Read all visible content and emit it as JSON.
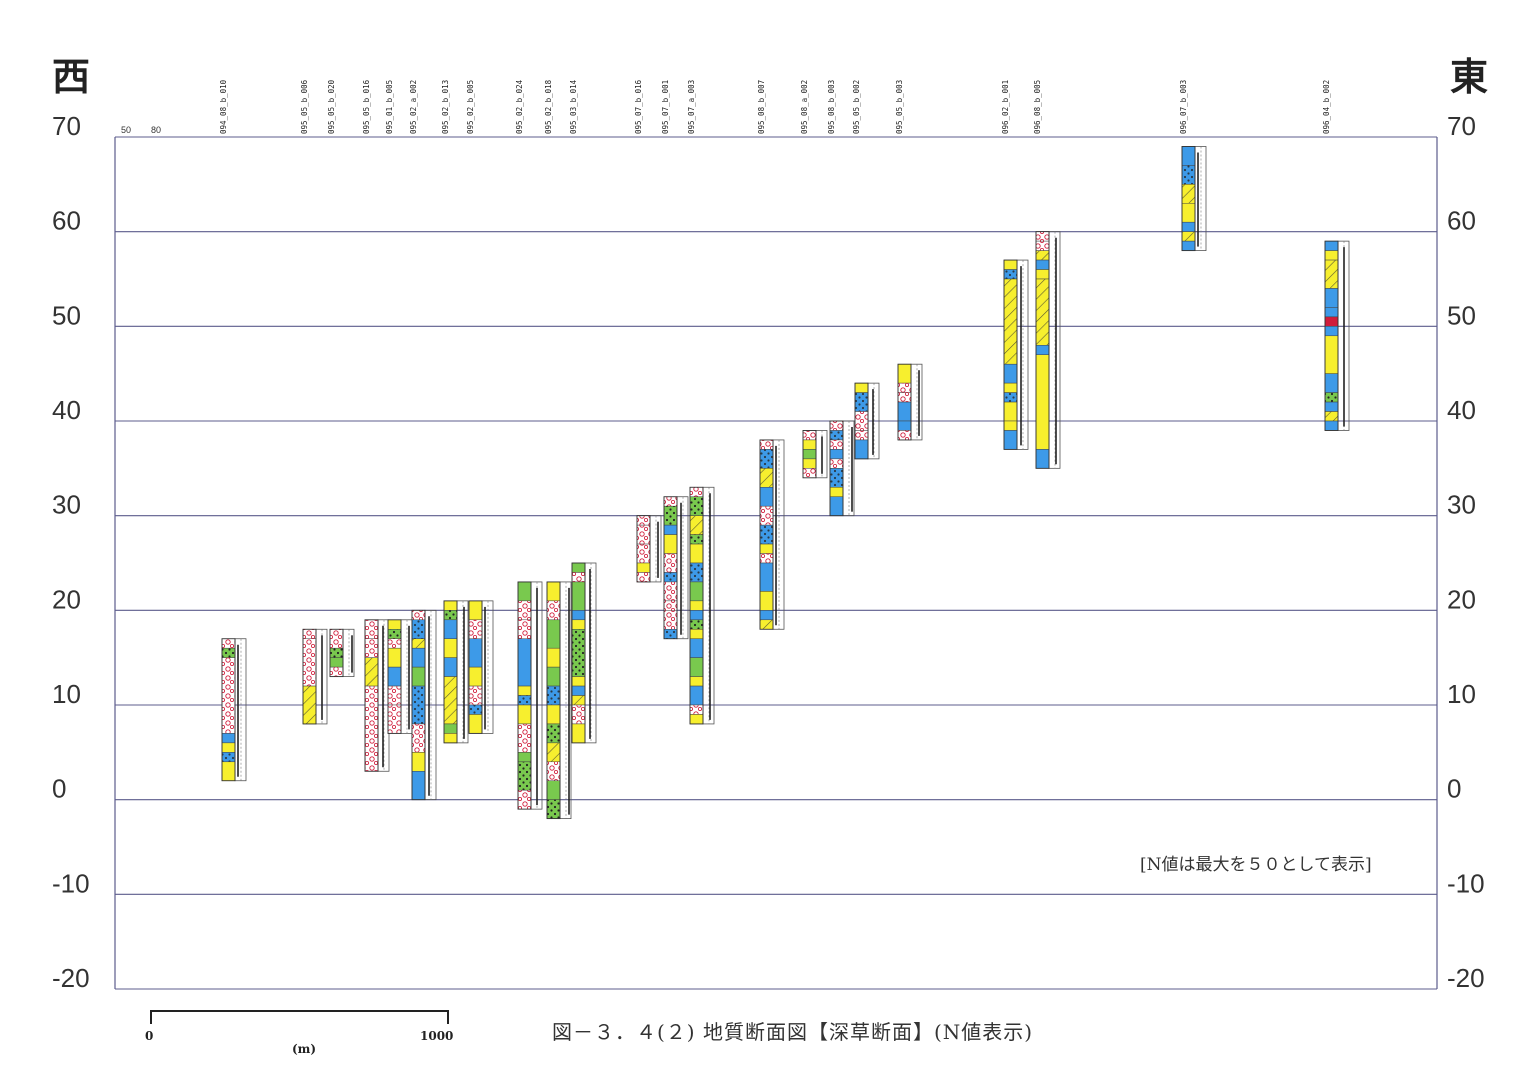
{
  "header": {
    "west": "西",
    "east": "東",
    "n_ref_labels": [
      "50",
      "80"
    ]
  },
  "axes": {
    "elevation_ticks": [
      "70",
      "60",
      "50",
      "40",
      "30",
      "20",
      "10",
      "0",
      "-10",
      "-20"
    ],
    "ymin": -20,
    "ymax": 70
  },
  "note": "[N値は最大を５０として表示]",
  "caption": "図－３．４(２)  地質断面図【深草断面】(N値表示)",
  "scale_bar": {
    "start": "0",
    "end": "1000",
    "unit": "(m)"
  },
  "colors": {
    "yellow": "#f7ef2e",
    "blue": "#3d9ae8",
    "green": "#79c94e",
    "white": "#ffffff",
    "red": "#d01c3a",
    "grid": "#5c5c8c",
    "n_line": "#222222"
  },
  "boreholes": [
    {
      "id": "094_08_b_010",
      "top": 17,
      "bottom": 2,
      "layers": [
        [
          17,
          16,
          "white"
        ],
        [
          16,
          15,
          "green"
        ],
        [
          15,
          7,
          "white"
        ],
        [
          7,
          6,
          "blue"
        ],
        [
          6,
          5,
          "yellow"
        ],
        [
          5,
          4,
          "blue"
        ],
        [
          4,
          2,
          "yellow"
        ]
      ]
    },
    {
      "id": "095_05_b_006",
      "top": 18,
      "bottom": 8,
      "layers": [
        [
          18,
          17,
          "white"
        ],
        [
          17,
          12,
          "white"
        ],
        [
          12,
          8,
          "yellow"
        ]
      ]
    },
    {
      "id": "095_05_b_020",
      "top": 18,
      "bottom": 13,
      "layers": [
        [
          18,
          16,
          "white"
        ],
        [
          16,
          15,
          "green"
        ],
        [
          15,
          14,
          "green"
        ],
        [
          14,
          13,
          "white"
        ]
      ]
    },
    {
      "id": "095_05_b_016",
      "top": 19,
      "bottom": 3,
      "layers": [
        [
          19,
          17,
          "white"
        ],
        [
          17,
          15,
          "white"
        ],
        [
          15,
          12,
          "yellow"
        ],
        [
          12,
          3,
          "white"
        ]
      ]
    },
    {
      "id": "095_01_b_005",
      "top": 19,
      "bottom": 7,
      "layers": [
        [
          19,
          18,
          "yellow"
        ],
        [
          18,
          17,
          "green"
        ],
        [
          17,
          16,
          "white"
        ],
        [
          16,
          14,
          "yellow"
        ],
        [
          14,
          12,
          "blue"
        ],
        [
          12,
          10,
          "white"
        ],
        [
          10,
          7,
          "white"
        ]
      ]
    },
    {
      "id": "095_02_a_002",
      "top": 20,
      "bottom": 0,
      "layers": [
        [
          20,
          19,
          "white"
        ],
        [
          19,
          17,
          "blue"
        ],
        [
          17,
          16,
          "yellow"
        ],
        [
          16,
          14,
          "blue"
        ],
        [
          14,
          12,
          "green"
        ],
        [
          12,
          8,
          "blue"
        ],
        [
          8,
          5,
          "white"
        ],
        [
          5,
          3,
          "yellow"
        ],
        [
          3,
          0,
          "blue"
        ]
      ]
    },
    {
      "id": "095_02_b_013",
      "top": 21,
      "bottom": 6,
      "layers": [
        [
          21,
          20,
          "yellow"
        ],
        [
          20,
          19,
          "green"
        ],
        [
          19,
          17,
          "blue"
        ],
        [
          17,
          15,
          "yellow"
        ],
        [
          15,
          13,
          "blue"
        ],
        [
          13,
          8,
          "yellow"
        ],
        [
          8,
          7,
          "green"
        ],
        [
          7,
          6,
          "yellow"
        ]
      ]
    },
    {
      "id": "095_02_b_005",
      "top": 21,
      "bottom": 7,
      "layers": [
        [
          21,
          19,
          "yellow"
        ],
        [
          19,
          17,
          "white"
        ],
        [
          17,
          14,
          "blue"
        ],
        [
          14,
          12,
          "yellow"
        ],
        [
          12,
          10,
          "white"
        ],
        [
          10,
          9,
          "blue"
        ],
        [
          9,
          7,
          "yellow"
        ]
      ]
    },
    {
      "id": "095_02_b_024",
      "top": 23,
      "bottom": -1,
      "layers": [
        [
          23,
          21,
          "green"
        ],
        [
          21,
          19,
          "white"
        ],
        [
          19,
          17,
          "white"
        ],
        [
          17,
          12,
          "blue"
        ],
        [
          12,
          11,
          "yellow"
        ],
        [
          11,
          10,
          "blue"
        ],
        [
          10,
          8,
          "yellow"
        ],
        [
          8,
          5,
          "white"
        ],
        [
          5,
          4,
          "green"
        ],
        [
          4,
          1,
          "green"
        ],
        [
          1,
          -1,
          "white"
        ]
      ]
    },
    {
      "id": "095_02_b_018",
      "top": 23,
      "bottom": -2,
      "layers": [
        [
          23,
          21,
          "yellow"
        ],
        [
          21,
          19,
          "white"
        ],
        [
          19,
          16,
          "green"
        ],
        [
          16,
          14,
          "yellow"
        ],
        [
          14,
          12,
          "green"
        ],
        [
          12,
          10,
          "blue"
        ],
        [
          10,
          8,
          "yellow"
        ],
        [
          8,
          6,
          "green"
        ],
        [
          6,
          4,
          "yellow"
        ],
        [
          4,
          2,
          "white"
        ],
        [
          2,
          0,
          "green"
        ],
        [
          0,
          -2,
          "green"
        ]
      ]
    },
    {
      "id": "095_03_b_014",
      "top": 25,
      "bottom": 6,
      "layers": [
        [
          25,
          24,
          "green"
        ],
        [
          24,
          23,
          "white"
        ],
        [
          23,
          20,
          "green"
        ],
        [
          20,
          19,
          "blue"
        ],
        [
          19,
          18,
          "yellow"
        ],
        [
          18,
          13,
          "green"
        ],
        [
          13,
          12,
          "yellow"
        ],
        [
          12,
          11,
          "blue"
        ],
        [
          11,
          10,
          "yellow"
        ],
        [
          10,
          8,
          "white"
        ],
        [
          8,
          6,
          "yellow"
        ]
      ]
    },
    {
      "id": "095_07_b_016",
      "top": 30,
      "bottom": 23,
      "layers": [
        [
          30,
          29,
          "white"
        ],
        [
          29,
          27,
          "white"
        ],
        [
          27,
          25,
          "white"
        ],
        [
          25,
          24,
          "yellow"
        ],
        [
          24,
          23,
          "white"
        ]
      ]
    },
    {
      "id": "095_07_b_001",
      "top": 32,
      "bottom": 17,
      "layers": [
        [
          32,
          31,
          "white"
        ],
        [
          31,
          29,
          "green"
        ],
        [
          29,
          28,
          "blue"
        ],
        [
          28,
          26,
          "yellow"
        ],
        [
          26,
          24,
          "white"
        ],
        [
          24,
          23,
          "blue"
        ],
        [
          23,
          21,
          "white"
        ],
        [
          21,
          20,
          "white"
        ],
        [
          20,
          18,
          "white"
        ],
        [
          18,
          17,
          "blue"
        ]
      ]
    },
    {
      "id": "095_07_a_003",
      "top": 33,
      "bottom": 8,
      "layers": [
        [
          33,
          32,
          "white"
        ],
        [
          32,
          30,
          "green"
        ],
        [
          30,
          28,
          "yellow"
        ],
        [
          28,
          27,
          "green"
        ],
        [
          27,
          25,
          "yellow"
        ],
        [
          25,
          23,
          "blue"
        ],
        [
          23,
          21,
          "green"
        ],
        [
          21,
          20,
          "yellow"
        ],
        [
          20,
          19,
          "blue"
        ],
        [
          19,
          18,
          "green"
        ],
        [
          18,
          17,
          "yellow"
        ],
        [
          17,
          15,
          "blue"
        ],
        [
          15,
          13,
          "green"
        ],
        [
          13,
          12,
          "yellow"
        ],
        [
          12,
          10,
          "blue"
        ],
        [
          10,
          9,
          "white"
        ],
        [
          9,
          8,
          "yellow"
        ]
      ]
    },
    {
      "id": "095_08_b_007",
      "top": 38,
      "bottom": 18,
      "layers": [
        [
          38,
          37,
          "white"
        ],
        [
          37,
          35,
          "blue"
        ],
        [
          35,
          33,
          "yellow"
        ],
        [
          33,
          31,
          "blue"
        ],
        [
          31,
          29,
          "white"
        ],
        [
          29,
          27,
          "blue"
        ],
        [
          27,
          26,
          "yellow"
        ],
        [
          26,
          25,
          "white"
        ],
        [
          25,
          22,
          "blue"
        ],
        [
          22,
          20,
          "yellow"
        ],
        [
          20,
          19,
          "blue"
        ],
        [
          19,
          18,
          "yellow"
        ]
      ]
    },
    {
      "id": "095_08_a_002",
      "top": 39,
      "bottom": 34,
      "layers": [
        [
          39,
          38,
          "white"
        ],
        [
          38,
          37,
          "yellow"
        ],
        [
          37,
          36,
          "green"
        ],
        [
          36,
          35,
          "yellow"
        ],
        [
          35,
          34,
          "white"
        ]
      ]
    },
    {
      "id": "095_08_b_003",
      "top": 40,
      "bottom": 30,
      "layers": [
        [
          40,
          39,
          "white"
        ],
        [
          39,
          38,
          "blue"
        ],
        [
          38,
          37,
          "white"
        ],
        [
          37,
          36,
          "blue"
        ],
        [
          36,
          35,
          "white"
        ],
        [
          35,
          33,
          "blue"
        ],
        [
          33,
          32,
          "yellow"
        ],
        [
          32,
          30,
          "blue"
        ]
      ]
    },
    {
      "id": "095_05_b_002",
      "top": 44,
      "bottom": 36,
      "layers": [
        [
          44,
          43,
          "yellow"
        ],
        [
          43,
          41,
          "blue"
        ],
        [
          41,
          39,
          "white"
        ],
        [
          39,
          38,
          "white"
        ],
        [
          38,
          36,
          "blue"
        ]
      ]
    },
    {
      "id": "095_05_b_003",
      "top": 46,
      "bottom": 38,
      "layers": [
        [
          46,
          44,
          "yellow"
        ],
        [
          44,
          43,
          "white"
        ],
        [
          43,
          42,
          "white"
        ],
        [
          42,
          40,
          "blue"
        ],
        [
          40,
          39,
          "blue"
        ],
        [
          39,
          38,
          "white"
        ]
      ]
    },
    {
      "id": "096_02_b_001",
      "top": 57,
      "bottom": 37,
      "layers": [
        [
          57,
          56,
          "yellow"
        ],
        [
          56,
          55,
          "blue"
        ],
        [
          55,
          46,
          "yellow"
        ],
        [
          46,
          44,
          "blue"
        ],
        [
          44,
          43,
          "yellow"
        ],
        [
          43,
          42,
          "blue"
        ],
        [
          42,
          40,
          "yellow"
        ],
        [
          40,
          39,
          "yellow"
        ],
        [
          39,
          37,
          "blue"
        ]
      ]
    },
    {
      "id": "096_08_b_005",
      "top": 60,
      "bottom": 35,
      "layers": [
        [
          60,
          59,
          "white"
        ],
        [
          59,
          58,
          "white"
        ],
        [
          58,
          57,
          "yellow"
        ],
        [
          57,
          56,
          "blue"
        ],
        [
          56,
          55,
          "yellow"
        ],
        [
          55,
          48,
          "yellow"
        ],
        [
          48,
          47,
          "blue"
        ],
        [
          47,
          37,
          "yellow"
        ],
        [
          37,
          35,
          "blue"
        ]
      ]
    },
    {
      "id": "096_07_b_003",
      "top": 69,
      "bottom": 58,
      "layers": [
        [
          69,
          67,
          "blue"
        ],
        [
          67,
          65,
          "blue"
        ],
        [
          65,
          63,
          "yellow"
        ],
        [
          63,
          61,
          "yellow"
        ],
        [
          61,
          60,
          "blue"
        ],
        [
          60,
          59,
          "yellow"
        ],
        [
          59,
          58,
          "blue"
        ]
      ]
    },
    {
      "id": "096_04_b_002",
      "top": 59,
      "bottom": 39,
      "layers": [
        [
          59,
          58,
          "blue"
        ],
        [
          58,
          57,
          "yellow"
        ],
        [
          57,
          54,
          "yellow"
        ],
        [
          54,
          52,
          "blue"
        ],
        [
          52,
          51,
          "blue"
        ],
        [
          51,
          50,
          "red"
        ],
        [
          50,
          49,
          "blue"
        ],
        [
          49,
          45,
          "yellow"
        ],
        [
          45,
          43,
          "blue"
        ],
        [
          43,
          42,
          "green"
        ],
        [
          42,
          41,
          "blue"
        ],
        [
          41,
          40,
          "yellow"
        ],
        [
          40,
          39,
          "blue"
        ]
      ]
    }
  ]
}
